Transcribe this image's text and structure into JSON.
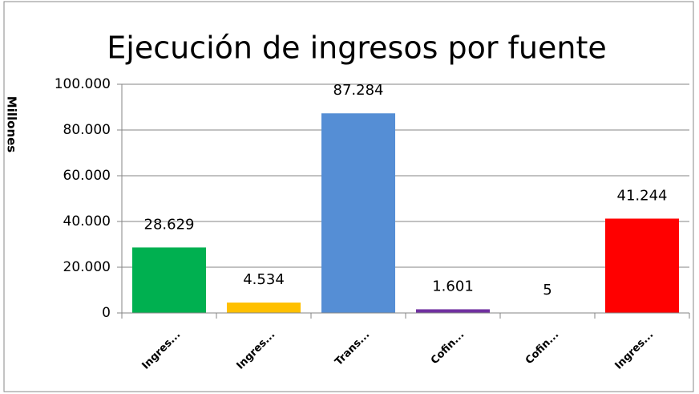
{
  "chart_data": {
    "type": "bar",
    "title": "Ejecución de ingresos por fuente",
    "y_label": "Millones",
    "categories": [
      "Ingres...",
      "Ingres...",
      "Trans...",
      "Cofin...",
      "Cofin...",
      "Ingres..."
    ],
    "values": [
      28629,
      4534,
      87284,
      1601,
      5,
      41244
    ],
    "value_labels": [
      "28.629",
      "4.534",
      "87.284",
      "1.601",
      "5",
      "41.244"
    ],
    "colors": [
      "#00b050",
      "#ffc000",
      "#558ed5",
      "#7030a0",
      "#4f81bd",
      "#ff0000"
    ],
    "ylim": [
      0,
      100000
    ],
    "yticks": [
      0,
      {
        "value": 20000,
        "label": "20.000"
      },
      {
        "value": 40000,
        "label": "40.000"
      },
      {
        "value": 60000,
        "label": "60.000"
      },
      {
        "value": 80000,
        "label": "80.000"
      },
      {
        "value": 100000,
        "label": "100.000"
      }
    ],
    "grid": true
  }
}
